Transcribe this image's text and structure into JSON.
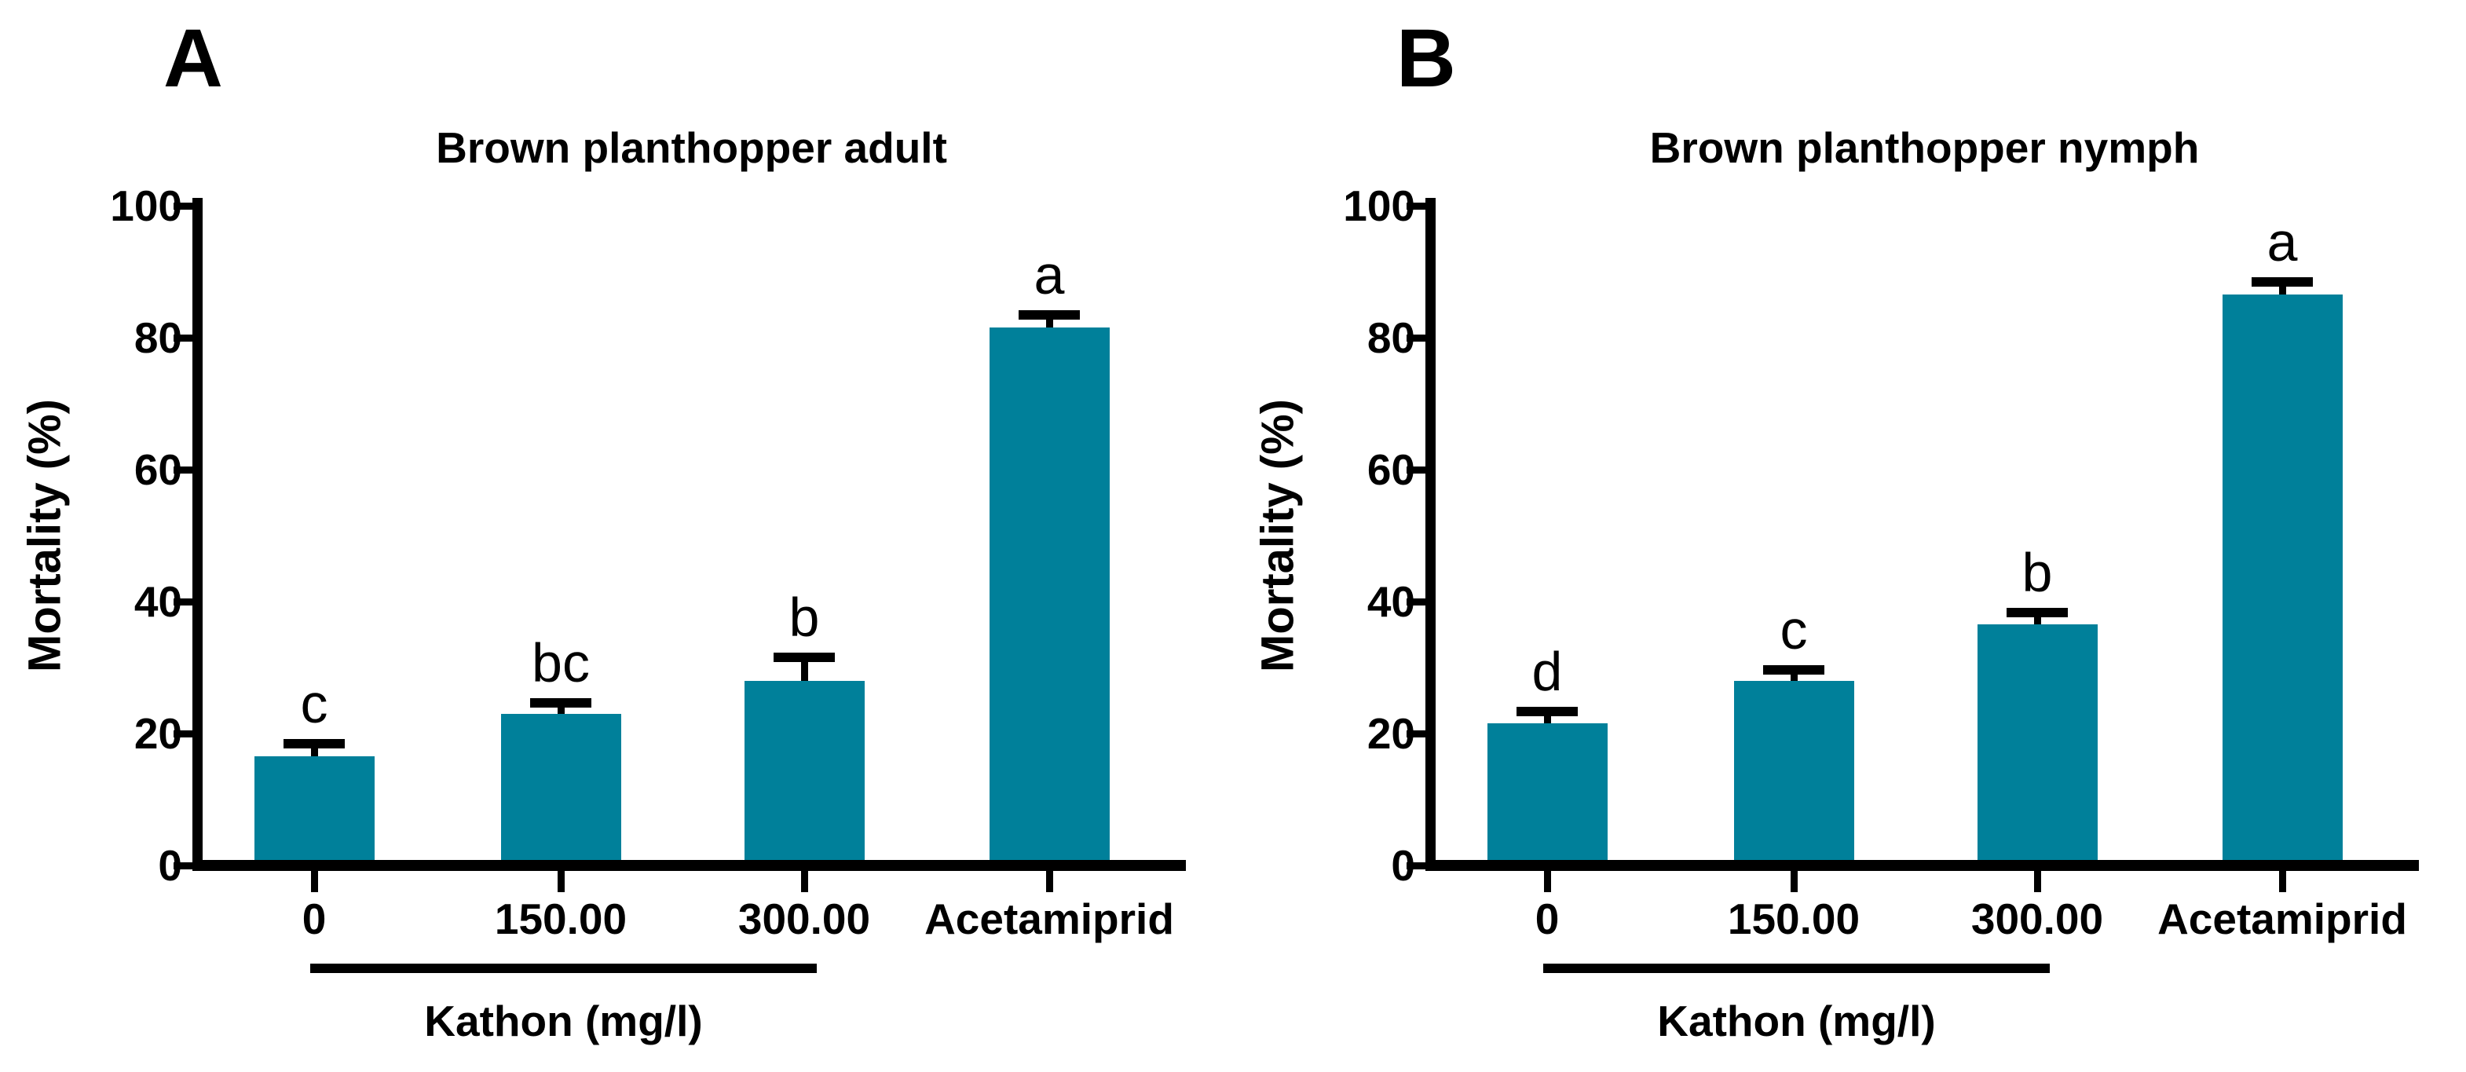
{
  "figure": {
    "bar_color": "#00809a",
    "axis_color": "#000000"
  },
  "chart_data": [
    {
      "type": "bar",
      "panel": "A",
      "title": "Brown planthopper adult",
      "ylabel": "Mortality (%)",
      "xlabel": "Kathon (mg/l)",
      "categories": [
        "0",
        "150.00",
        "300.00",
        "Acetamiprid"
      ],
      "kathon_group_categories": [
        "0",
        "150.00",
        "300.00"
      ],
      "values": [
        16.5,
        23,
        28,
        81.5
      ],
      "errors": [
        2.0,
        1.7,
        3.5,
        2.0
      ],
      "error_style": "upper-only",
      "sig_letters": [
        "c",
        "bc",
        "b",
        "a"
      ],
      "ylim": [
        0,
        100
      ],
      "yticks": [
        0,
        20,
        40,
        60,
        80,
        100
      ],
      "grid": "off",
      "legend": "none"
    },
    {
      "type": "bar",
      "panel": "B",
      "title": "Brown planthopper nymph",
      "ylabel": "Mortality (%)",
      "xlabel": "Kathon (mg/l)",
      "categories": [
        "0",
        "150.00",
        "300.00",
        "Acetamiprid"
      ],
      "kathon_group_categories": [
        "0",
        "150.00",
        "300.00"
      ],
      "values": [
        21.5,
        28,
        36.5,
        86.5
      ],
      "errors": [
        1.8,
        1.6,
        1.8,
        1.9
      ],
      "error_style": "upper-only",
      "sig_letters": [
        "d",
        "c",
        "b",
        "a"
      ],
      "ylim": [
        0,
        100
      ],
      "yticks": [
        0,
        20,
        40,
        60,
        80,
        100
      ],
      "grid": "off",
      "legend": "none"
    }
  ]
}
